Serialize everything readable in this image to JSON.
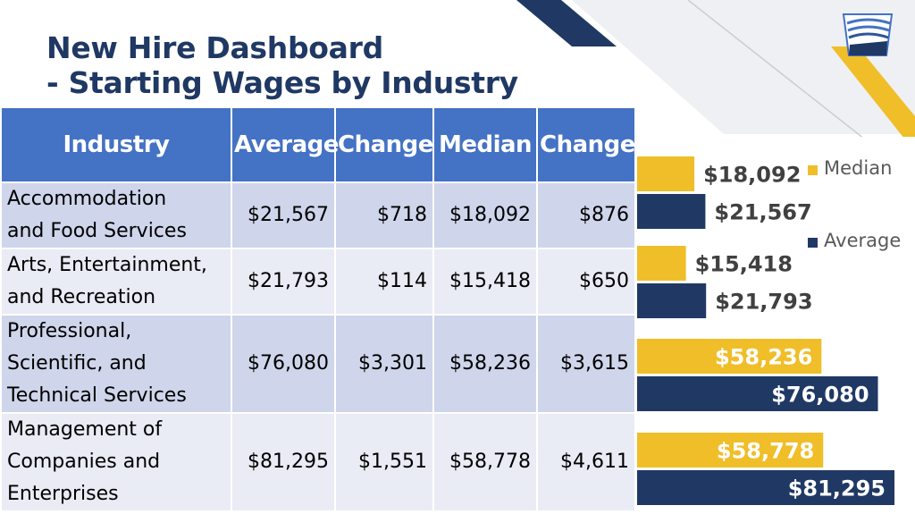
{
  "title": {
    "line1": "New Hire Dashboard",
    "line2": "- Starting Wages by Industry"
  },
  "table": {
    "headers": [
      "Industry",
      "Average",
      "Change",
      "Median",
      "Change"
    ],
    "rows": [
      {
        "industry_lines": [
          "Accommodation",
          "and Food Services"
        ],
        "average": "$21,567",
        "avg_change": "$718",
        "median": "$18,092",
        "med_change": "$876"
      },
      {
        "industry_lines": [
          "Arts, Entertainment,",
          "and Recreation"
        ],
        "average": "$21,793",
        "avg_change": "$114",
        "median": "$15,418",
        "med_change": "$650"
      },
      {
        "industry_lines": [
          "Professional,",
          "Scientific, and",
          "Technical Services"
        ],
        "average": "$76,080",
        "avg_change": "$3,301",
        "median": "$58,236",
        "med_change": "$3,615"
      },
      {
        "industry_lines": [
          "Management of",
          "Companies and",
          "Enterprises"
        ],
        "average": "$81,295",
        "avg_change": "$1,551",
        "median": "$58,778",
        "med_change": "$4,611"
      }
    ]
  },
  "chart_data": {
    "type": "bar",
    "orientation": "horizontal",
    "categories": [
      "Accommodation and Food Services",
      "Arts, Entertainment, and Recreation",
      "Professional, Scientific, and Technical Services",
      "Management of Companies and Enterprises"
    ],
    "series": [
      {
        "name": "Median",
        "values": [
          18092,
          15418,
          58236,
          58778
        ],
        "labels": [
          "$18,092",
          "$15,418",
          "$58,236",
          "$58,778"
        ],
        "color": "#f0be29"
      },
      {
        "name": "Average",
        "values": [
          21567,
          21793,
          76080,
          81295
        ],
        "labels": [
          "$21,567",
          "$21,793",
          "$76,080",
          "$81,295"
        ],
        "color": "#203864"
      }
    ],
    "xlim": [
      0,
      81295
    ],
    "legend_position": "top-right",
    "grid": false
  },
  "colors": {
    "title": "#1f3864",
    "header_bg": "#4472c4",
    "row_dark": "#cfd5ea",
    "row_light": "#e9ebf5",
    "median": "#f0be29",
    "average": "#203864"
  },
  "logo_icon": "keystone-icon"
}
